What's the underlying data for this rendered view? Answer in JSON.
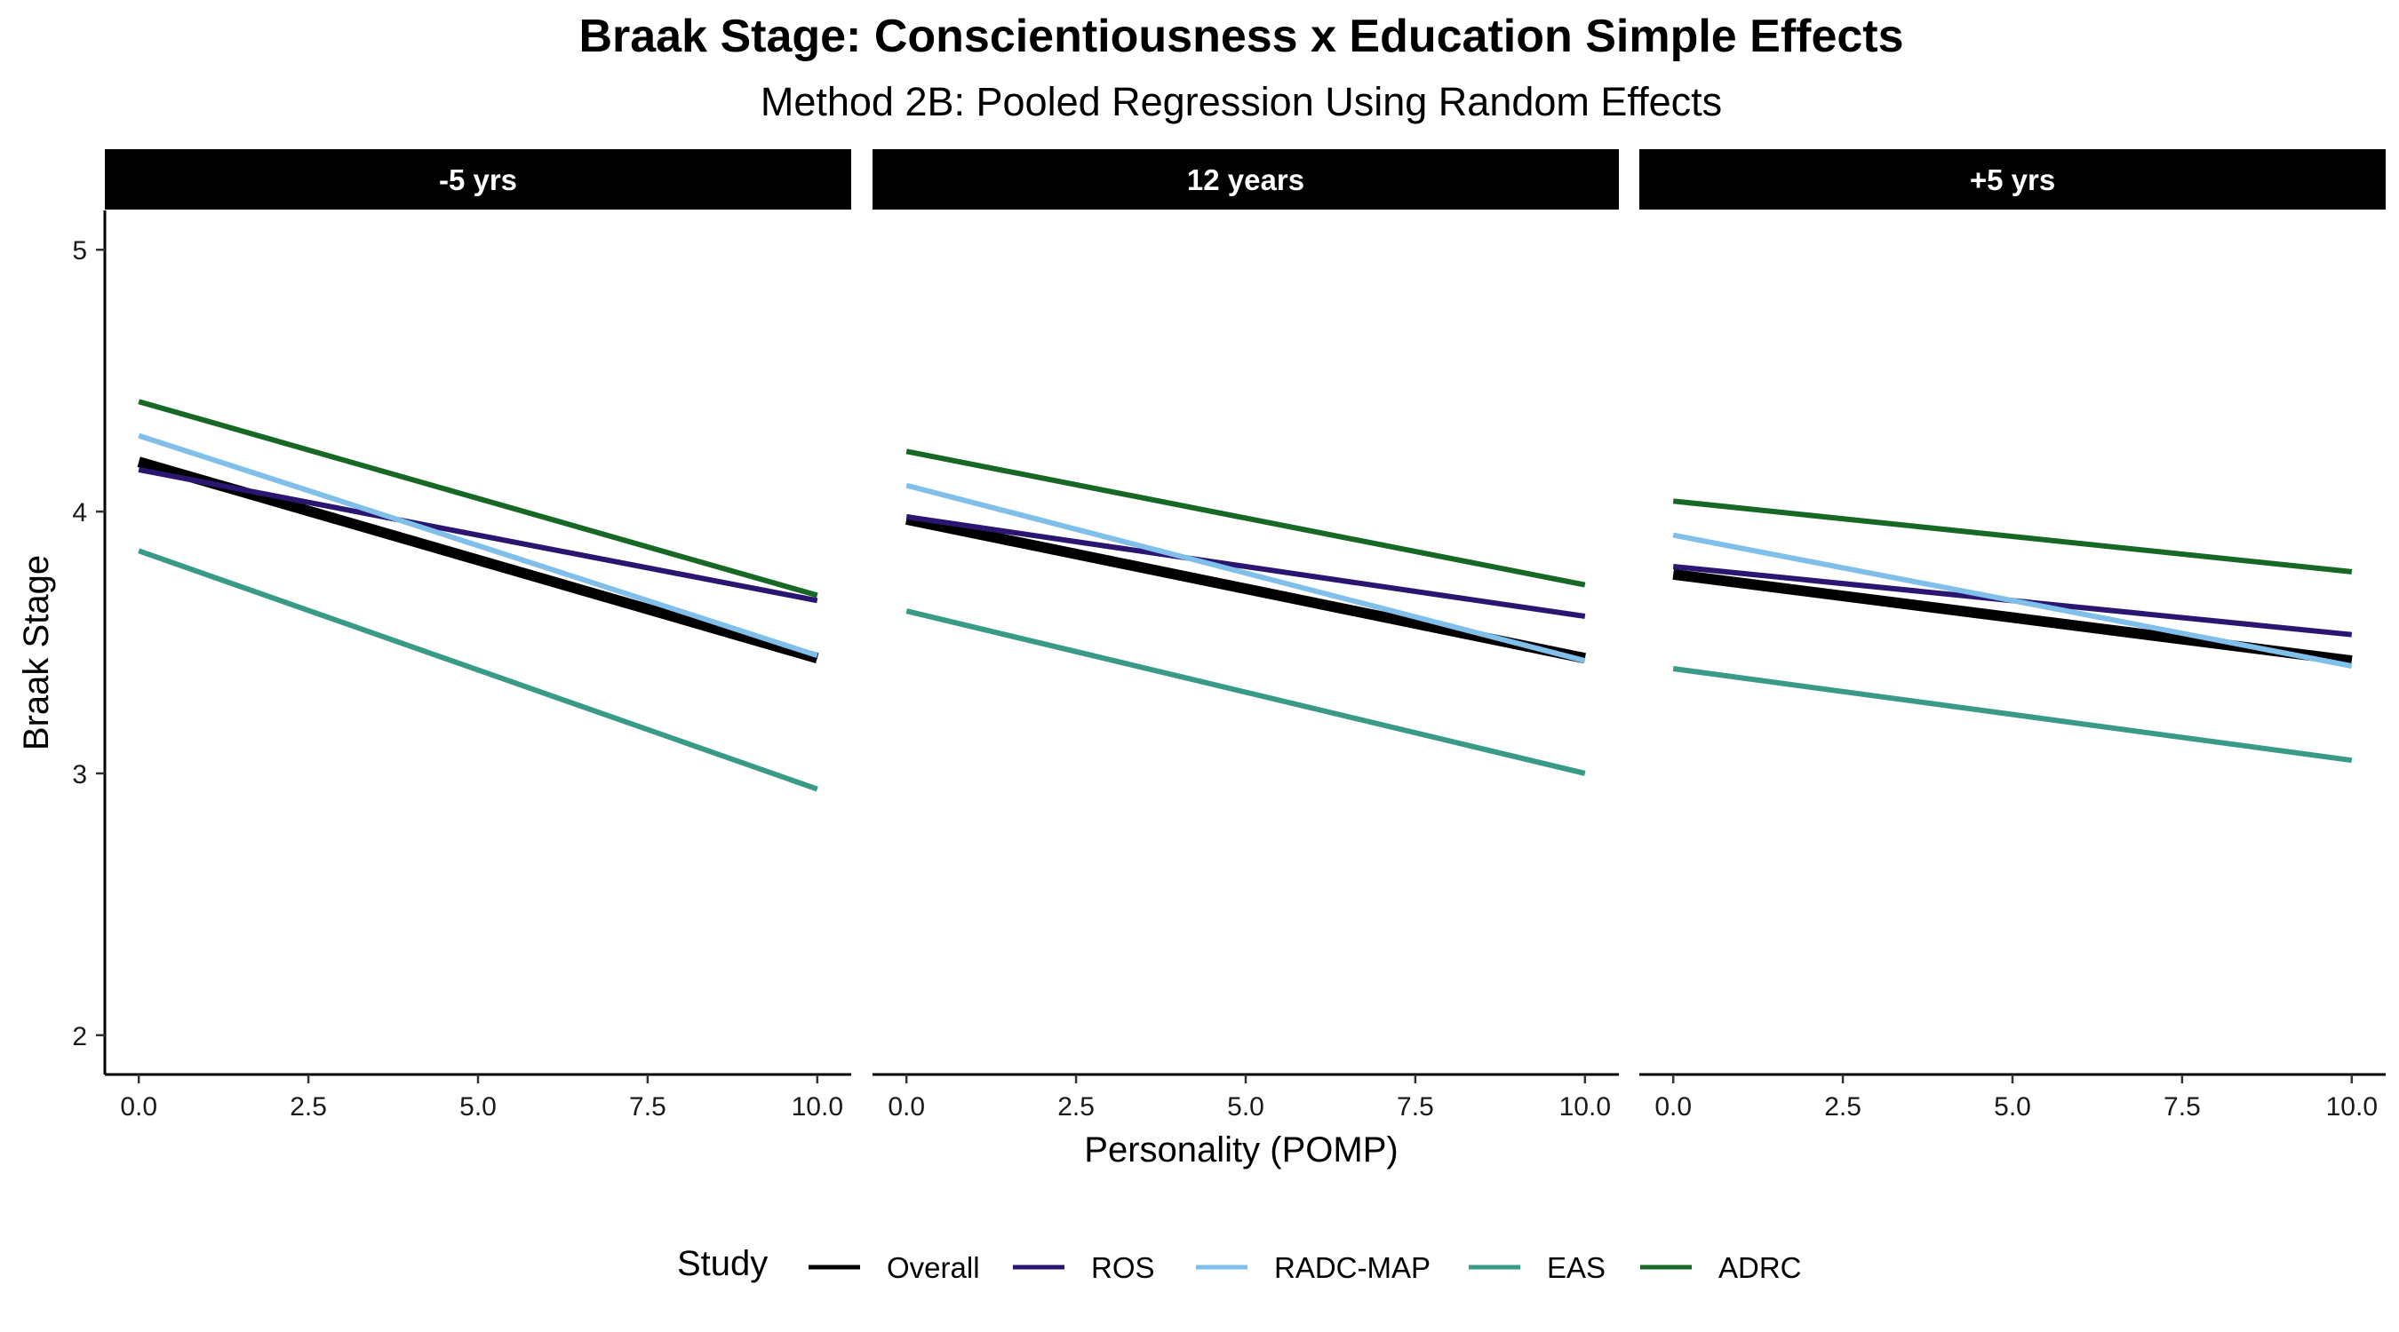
{
  "chart_data": {
    "type": "line",
    "title": "Braak Stage: Conscientiousness x Education Simple Effects",
    "subtitle": "Method 2B: Pooled Regression Using Random Effects",
    "xlabel": "Personality (POMP)",
    "ylabel": "Braak Stage",
    "xlim": [
      -0.5,
      10.5
    ],
    "ylim": [
      1.85,
      5.15
    ],
    "x_ticks": [
      "0.0",
      "2.5",
      "5.0",
      "7.5",
      "10.0"
    ],
    "y_ticks": [
      "2",
      "3",
      "4",
      "5"
    ],
    "grid": false,
    "legend_position": "bottom",
    "legend_title": "Study",
    "colors": {
      "Overall": "#000000",
      "ROS": "#2a1670",
      "RADC-MAP": "#7fbfea",
      "EAS": "#3a9a88",
      "ADRC": "#176725"
    },
    "series_names": [
      "Overall",
      "ROS",
      "RADC-MAP",
      "EAS",
      "ADRC"
    ],
    "panels": [
      {
        "label": "-5 yrs",
        "series": [
          {
            "name": "Overall",
            "x": [
              0,
              10
            ],
            "y": [
              4.19,
              3.44
            ]
          },
          {
            "name": "ROS",
            "x": [
              0,
              10
            ],
            "y": [
              4.16,
              3.66
            ]
          },
          {
            "name": "RADC-MAP",
            "x": [
              0,
              10
            ],
            "y": [
              4.29,
              3.45
            ]
          },
          {
            "name": "EAS",
            "x": [
              0,
              10
            ],
            "y": [
              3.85,
              2.94
            ]
          },
          {
            "name": "ADRC",
            "x": [
              0,
              10
            ],
            "y": [
              4.42,
              3.68
            ]
          }
        ]
      },
      {
        "label": "12 years",
        "series": [
          {
            "name": "Overall",
            "x": [
              0,
              10
            ],
            "y": [
              3.97,
              3.44
            ]
          },
          {
            "name": "ROS",
            "x": [
              0,
              10
            ],
            "y": [
              3.98,
              3.6
            ]
          },
          {
            "name": "RADC-MAP",
            "x": [
              0,
              10
            ],
            "y": [
              4.1,
              3.43
            ]
          },
          {
            "name": "EAS",
            "x": [
              0,
              10
            ],
            "y": [
              3.62,
              3.0
            ]
          },
          {
            "name": "ADRC",
            "x": [
              0,
              10
            ],
            "y": [
              4.23,
              3.72
            ]
          }
        ]
      },
      {
        "label": "+5 yrs",
        "series": [
          {
            "name": "Overall",
            "x": [
              0,
              10
            ],
            "y": [
              3.76,
              3.43
            ]
          },
          {
            "name": "ROS",
            "x": [
              0,
              10
            ],
            "y": [
              3.79,
              3.53
            ]
          },
          {
            "name": "RADC-MAP",
            "x": [
              0,
              10
            ],
            "y": [
              3.91,
              3.41
            ]
          },
          {
            "name": "EAS",
            "x": [
              0,
              10
            ],
            "y": [
              3.4,
              3.05
            ]
          },
          {
            "name": "ADRC",
            "x": [
              0,
              10
            ],
            "y": [
              4.04,
              3.77
            ]
          }
        ]
      }
    ]
  }
}
